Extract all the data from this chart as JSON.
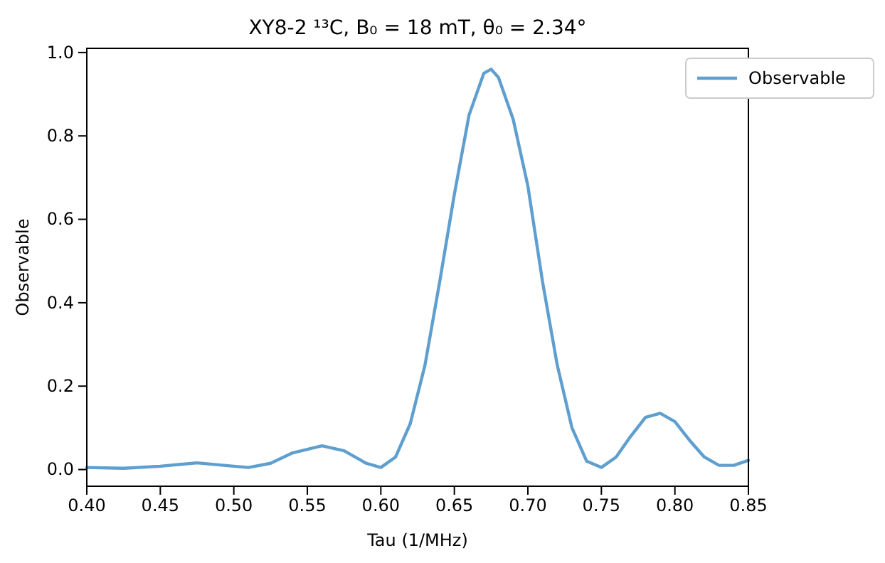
{
  "chart_data": {
    "type": "line",
    "title": "XY8-2 ¹³C, B₀ = 18 mT, θ₀ = 2.34°",
    "xlabel": "Tau (1/MHz)",
    "ylabel": "Observable",
    "x": [
      0.4,
      0.425,
      0.45,
      0.475,
      0.5,
      0.51,
      0.525,
      0.54,
      0.56,
      0.575,
      0.59,
      0.6,
      0.61,
      0.62,
      0.63,
      0.64,
      0.65,
      0.66,
      0.67,
      0.675,
      0.68,
      0.69,
      0.7,
      0.71,
      0.72,
      0.73,
      0.74,
      0.75,
      0.76,
      0.77,
      0.78,
      0.79,
      0.8,
      0.81,
      0.82,
      0.83,
      0.84,
      0.85
    ],
    "series": [
      {
        "name": "Observable",
        "color": "#5f9fcf",
        "values": [
          0.005,
          0.003,
          0.008,
          0.016,
          0.008,
          0.005,
          0.015,
          0.04,
          0.057,
          0.045,
          0.015,
          0.005,
          0.03,
          0.11,
          0.25,
          0.45,
          0.66,
          0.85,
          0.95,
          0.96,
          0.94,
          0.84,
          0.68,
          0.45,
          0.25,
          0.1,
          0.02,
          0.005,
          0.03,
          0.08,
          0.125,
          0.135,
          0.115,
          0.07,
          0.03,
          0.01,
          0.01,
          0.022
        ]
      }
    ],
    "xlim": [
      0.4,
      0.85
    ],
    "xticks": [
      {
        "value": 0.4,
        "label": "0.40"
      },
      {
        "value": 0.45,
        "label": "0.45"
      },
      {
        "value": 0.5,
        "label": "0.50"
      },
      {
        "value": 0.55,
        "label": "0.55"
      },
      {
        "value": 0.6,
        "label": "0.60"
      },
      {
        "value": 0.65,
        "label": "0.65"
      },
      {
        "value": 0.7,
        "label": "0.70"
      },
      {
        "value": 0.75,
        "label": "0.75"
      },
      {
        "value": 0.8,
        "label": "0.80"
      },
      {
        "value": 0.85,
        "label": "0.85"
      }
    ],
    "ylim": [
      -0.04,
      1.01
    ],
    "yticks": [
      {
        "value": 0,
        "label": "0.0"
      },
      {
        "value": 0.2,
        "label": "0.2"
      },
      {
        "value": 0.4,
        "label": "0.4"
      },
      {
        "value": 0.6,
        "label": "0.6"
      },
      {
        "value": 0.8,
        "label": "0.8"
      },
      {
        "value": 1,
        "label": "1.0"
      }
    ],
    "grid": false,
    "legend": "top right",
    "marker": "none",
    "line_style": "solid"
  }
}
